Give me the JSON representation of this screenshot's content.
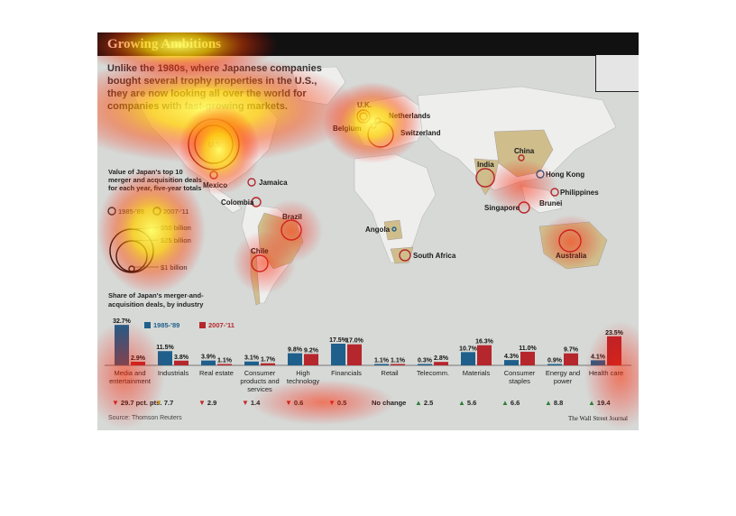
{
  "title": "Growing Ambitions",
  "intro": "Unlike the 1980s, where Japanese companies bought several trophy properties in the U.S., they are now looking all over the world for companies with fast-growing markets.",
  "map": {
    "legend_title": "Value of Japan's top 10 merger and acquisition deals for each year, five-year totals",
    "legend_periods": [
      "1985-'89",
      "2007-'11"
    ],
    "legend_scale": [
      "$50 billion",
      "$25 billion",
      "$1 billion"
    ],
    "locations": [
      "U.S.",
      "Mexico",
      "Jamaica",
      "Colombia",
      "Brazil",
      "Chile",
      "U.K.",
      "Netherlands",
      "Belgium",
      "Switzerland",
      "Angola",
      "South Africa",
      "India",
      "China",
      "Hong Kong",
      "Philippines",
      "Singapore",
      "Brunei",
      "Australia"
    ]
  },
  "colors": {
    "p1985": "#1f5f8b",
    "p2007": "#b5272d",
    "up": "#2e7d3a",
    "down": "#c62828",
    "neutral": "#c98a1a"
  },
  "chart_data": {
    "type": "bar",
    "title": "Share of Japan's merger-and-acquisition deals, by industry",
    "categories": [
      "Media and entertainment",
      "Industrials",
      "Real estate",
      "Consumer products and services",
      "High technology",
      "Financials",
      "Retail",
      "Telecomm.",
      "Materials",
      "Consumer staples",
      "Energy and power",
      "Health care"
    ],
    "series": [
      {
        "name": "1985-'89",
        "values": [
          32.7,
          11.5,
          3.9,
          3.1,
          9.8,
          17.5,
          1.1,
          0.3,
          10.7,
          4.3,
          0.9,
          4.1
        ],
        "labels": [
          "32.7%",
          "11.5%",
          "3.9%",
          "3.1%",
          "9.8%",
          "17.5%",
          "1.1%",
          "0.3%",
          "10.7%",
          "4.3%",
          "0.9%",
          "4.1%"
        ]
      },
      {
        "name": "2007-'11",
        "values": [
          2.9,
          3.8,
          1.1,
          1.7,
          9.2,
          17.0,
          1.1,
          2.8,
          16.3,
          11.0,
          9.7,
          23.5
        ],
        "labels": [
          "2.9%",
          "3.8%",
          "1.1%",
          "1.7%",
          "9.2%",
          "17.0%",
          "1.1%",
          "2.8%",
          "16.3%",
          "11.0%",
          "9.7%",
          "23.5%"
        ]
      }
    ],
    "changes": [
      {
        "dir": "down",
        "text": "29.7 pct. pts."
      },
      {
        "dir": "neutral",
        "text": "7.7"
      },
      {
        "dir": "down",
        "text": "2.9"
      },
      {
        "dir": "down",
        "text": "1.4"
      },
      {
        "dir": "down",
        "text": "0.6"
      },
      {
        "dir": "down",
        "text": "0.5"
      },
      {
        "dir": "none",
        "text": "No change"
      },
      {
        "dir": "up",
        "text": "2.5"
      },
      {
        "dir": "up",
        "text": "5.6"
      },
      {
        "dir": "up",
        "text": "6.6"
      },
      {
        "dir": "up",
        "text": "8.8"
      },
      {
        "dir": "up",
        "text": "19.4"
      }
    ],
    "ylim": [
      0,
      35
    ]
  },
  "source": "Source: Thomson Reuters",
  "credit": "The Wall Street Journal"
}
